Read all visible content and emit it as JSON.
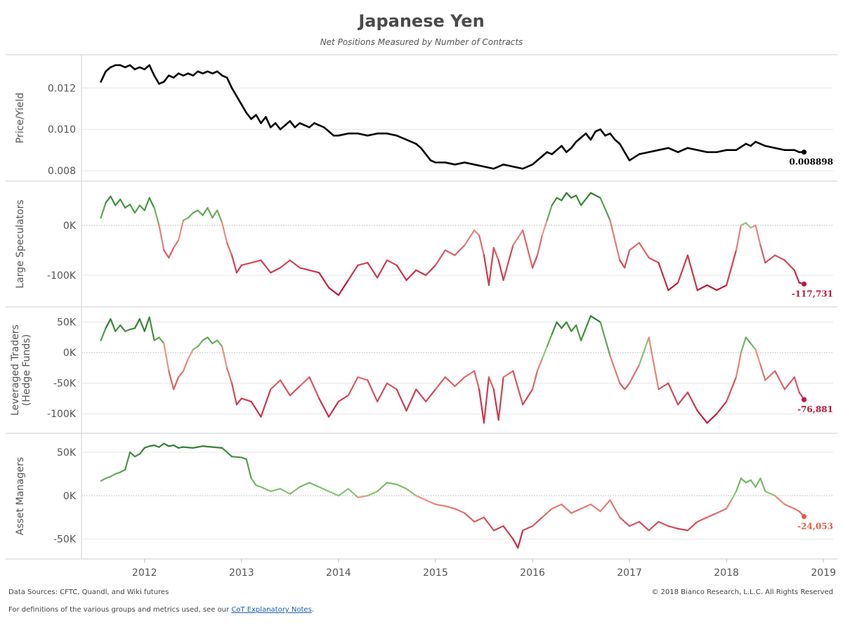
{
  "header": {
    "title": "Japanese Yen",
    "subtitle": "Net Positions Measured by Number of Contracts"
  },
  "footer": {
    "sources": "Data Sources: CFTC, Quandl, and Wiki futures",
    "copyright": "© 2018 Bianco Research, L.L.C. All Rights Reserved",
    "definitions_prefix": "For definitions of the various groups and metrics used, see our ",
    "definitions_link": "CoT Explanatory Notes",
    "definitions_suffix": "."
  },
  "colors": {
    "price_line": "#000000",
    "strong_green": "#2e7d32",
    "light_green": "#8cc878",
    "light_red": "#ef9a86",
    "strong_red": "#c0183a",
    "grid": "#e6e6e6",
    "zero_line": "#b5b5b5"
  },
  "chart_data": {
    "type": "line",
    "x_axis": {
      "ticks": [
        "2012",
        "2013",
        "2014",
        "2015",
        "2016",
        "2017",
        "2018",
        "2019"
      ],
      "range": [
        2011.35,
        2019.1
      ]
    },
    "panels": [
      {
        "id": "price",
        "ylabel": [
          "Price/Yield"
        ],
        "ylim": [
          0.0077,
          0.0134
        ],
        "ticks": [
          0.008,
          0.01,
          0.012
        ],
        "tick_labels": [
          "0.008",
          "0.010",
          "0.012"
        ],
        "zero_line": false,
        "color_mode": "solid",
        "end_label": "0.008898",
        "end_label_color": "#000000",
        "series": {
          "x": [
            2011.55,
            2011.6,
            2011.65,
            2011.7,
            2011.75,
            2011.8,
            2011.85,
            2011.9,
            2011.95,
            2012.0,
            2012.05,
            2012.1,
            2012.15,
            2012.2,
            2012.25,
            2012.3,
            2012.35,
            2012.4,
            2012.45,
            2012.5,
            2012.55,
            2012.6,
            2012.65,
            2012.7,
            2012.75,
            2012.8,
            2012.85,
            2012.9,
            2012.95,
            2013.0,
            2013.05,
            2013.1,
            2013.15,
            2013.2,
            2013.25,
            2013.3,
            2013.35,
            2013.4,
            2013.45,
            2013.5,
            2013.55,
            2013.6,
            2013.65,
            2013.7,
            2013.75,
            2013.8,
            2013.85,
            2013.9,
            2013.95,
            2014.0,
            2014.1,
            2014.2,
            2014.3,
            2014.4,
            2014.5,
            2014.6,
            2014.7,
            2014.8,
            2014.85,
            2014.9,
            2014.95,
            2015.0,
            2015.1,
            2015.2,
            2015.3,
            2015.4,
            2015.5,
            2015.6,
            2015.7,
            2015.8,
            2015.9,
            2016.0,
            2016.05,
            2016.1,
            2016.15,
            2016.2,
            2016.25,
            2016.3,
            2016.35,
            2016.4,
            2016.45,
            2016.5,
            2016.55,
            2016.6,
            2016.65,
            2016.7,
            2016.75,
            2016.8,
            2016.85,
            2016.9,
            2016.95,
            2017.0,
            2017.1,
            2017.2,
            2017.3,
            2017.4,
            2017.5,
            2017.6,
            2017.7,
            2017.8,
            2017.9,
            2018.0,
            2018.1,
            2018.2,
            2018.25,
            2018.3,
            2018.4,
            2018.5,
            2018.6,
            2018.7,
            2018.75,
            2018.8
          ],
          "y": [
            0.0123,
            0.0128,
            0.013,
            0.0131,
            0.0131,
            0.013,
            0.0131,
            0.0129,
            0.013,
            0.0129,
            0.0131,
            0.0126,
            0.0122,
            0.0123,
            0.0126,
            0.0125,
            0.0127,
            0.0126,
            0.0127,
            0.0126,
            0.0128,
            0.0127,
            0.0128,
            0.0127,
            0.0128,
            0.0126,
            0.0125,
            0.012,
            0.0116,
            0.0112,
            0.0108,
            0.0105,
            0.0107,
            0.0103,
            0.0106,
            0.0101,
            0.0103,
            0.01,
            0.0102,
            0.0104,
            0.0101,
            0.0103,
            0.0102,
            0.0101,
            0.0103,
            0.0102,
            0.0101,
            0.0099,
            0.0097,
            0.0097,
            0.0098,
            0.0098,
            0.0097,
            0.0098,
            0.0098,
            0.0097,
            0.0095,
            0.0093,
            0.0091,
            0.0088,
            0.0085,
            0.0084,
            0.0084,
            0.0083,
            0.0084,
            0.0083,
            0.0082,
            0.0081,
            0.0083,
            0.0082,
            0.0081,
            0.0083,
            0.0085,
            0.0087,
            0.0089,
            0.0088,
            0.009,
            0.0092,
            0.0089,
            0.0091,
            0.0094,
            0.0096,
            0.0098,
            0.0095,
            0.0099,
            0.01,
            0.0097,
            0.0098,
            0.0095,
            0.0093,
            0.0089,
            0.0085,
            0.0088,
            0.0089,
            0.009,
            0.0091,
            0.0089,
            0.0091,
            0.009,
            0.0089,
            0.0089,
            0.009,
            0.009,
            0.0093,
            0.0092,
            0.0094,
            0.0092,
            0.0091,
            0.009,
            0.009,
            0.0089,
            0.0089
          ]
        }
      },
      {
        "id": "large-speculators",
        "ylabel": [
          "Large Speculators"
        ],
        "ylim": [
          -155000,
          80000
        ],
        "ticks": [
          0,
          -100000
        ],
        "tick_labels": [
          "0K",
          "-100K"
        ],
        "zero_line": true,
        "color_mode": "sign",
        "color_max": 60000,
        "color_min": -120000,
        "end_label": "-117,731",
        "end_label_color": "#c0183a",
        "series": {
          "x": [
            2011.55,
            2011.6,
            2011.65,
            2011.7,
            2011.75,
            2011.8,
            2011.85,
            2011.9,
            2011.95,
            2012.0,
            2012.05,
            2012.1,
            2012.15,
            2012.2,
            2012.25,
            2012.3,
            2012.35,
            2012.4,
            2012.45,
            2012.5,
            2012.55,
            2012.6,
            2012.65,
            2012.7,
            2012.75,
            2012.8,
            2012.85,
            2012.9,
            2012.95,
            2013.0,
            2013.1,
            2013.2,
            2013.3,
            2013.4,
            2013.5,
            2013.6,
            2013.7,
            2013.8,
            2013.9,
            2014.0,
            2014.1,
            2014.2,
            2014.3,
            2014.4,
            2014.5,
            2014.6,
            2014.7,
            2014.8,
            2014.9,
            2015.0,
            2015.1,
            2015.2,
            2015.3,
            2015.4,
            2015.45,
            2015.5,
            2015.55,
            2015.6,
            2015.65,
            2015.7,
            2015.8,
            2015.9,
            2016.0,
            2016.05,
            2016.1,
            2016.15,
            2016.2,
            2016.25,
            2016.3,
            2016.35,
            2016.4,
            2016.45,
            2016.5,
            2016.6,
            2016.7,
            2016.8,
            2016.9,
            2016.95,
            2017.0,
            2017.1,
            2017.2,
            2017.3,
            2017.4,
            2017.5,
            2017.6,
            2017.7,
            2017.8,
            2017.9,
            2018.0,
            2018.1,
            2018.15,
            2018.2,
            2018.25,
            2018.3,
            2018.35,
            2018.4,
            2018.5,
            2018.6,
            2018.7,
            2018.75,
            2018.8
          ],
          "y": [
            15000,
            45000,
            58000,
            40000,
            52000,
            35000,
            42000,
            25000,
            40000,
            30000,
            55000,
            35000,
            0,
            -50000,
            -65000,
            -45000,
            -30000,
            10000,
            15000,
            25000,
            30000,
            20000,
            35000,
            15000,
            30000,
            5000,
            -35000,
            -60000,
            -95000,
            -80000,
            -75000,
            -70000,
            -95000,
            -85000,
            -70000,
            -85000,
            -90000,
            -95000,
            -125000,
            -140000,
            -110000,
            -80000,
            -75000,
            -105000,
            -70000,
            -80000,
            -110000,
            -90000,
            -100000,
            -80000,
            -50000,
            -60000,
            -40000,
            -10000,
            -20000,
            -60000,
            -120000,
            -45000,
            -70000,
            -110000,
            -40000,
            -10000,
            -85000,
            -60000,
            -20000,
            10000,
            40000,
            55000,
            50000,
            65000,
            55000,
            60000,
            40000,
            65000,
            55000,
            10000,
            -70000,
            -85000,
            -50000,
            -35000,
            -65000,
            -75000,
            -130000,
            -115000,
            -60000,
            -130000,
            -120000,
            -130000,
            -120000,
            -50000,
            0,
            5000,
            -5000,
            0,
            -40000,
            -75000,
            -60000,
            -70000,
            -90000,
            -115000,
            -117731
          ]
        }
      },
      {
        "id": "leveraged-traders",
        "ylabel": [
          "Leveraged Traders",
          "(Hedge Funds)"
        ],
        "ylim": [
          -125000,
          68000
        ],
        "ticks": [
          50000,
          0,
          -50000,
          -100000
        ],
        "tick_labels": [
          "50K",
          "0K",
          "-50K",
          "-100K"
        ],
        "zero_line": true,
        "color_mode": "sign",
        "color_max": 50000,
        "color_min": -110000,
        "end_label": "-76,881",
        "end_label_color": "#c0183a",
        "series": {
          "x": [
            2011.55,
            2011.6,
            2011.65,
            2011.7,
            2011.75,
            2011.8,
            2011.85,
            2011.9,
            2011.95,
            2012.0,
            2012.05,
            2012.1,
            2012.15,
            2012.2,
            2012.25,
            2012.3,
            2012.35,
            2012.4,
            2012.45,
            2012.5,
            2012.55,
            2012.6,
            2012.65,
            2012.7,
            2012.75,
            2012.8,
            2012.85,
            2012.9,
            2012.95,
            2013.0,
            2013.1,
            2013.2,
            2013.3,
            2013.4,
            2013.5,
            2013.6,
            2013.7,
            2013.8,
            2013.9,
            2014.0,
            2014.1,
            2014.2,
            2014.3,
            2014.4,
            2014.5,
            2014.6,
            2014.7,
            2014.8,
            2014.9,
            2015.0,
            2015.1,
            2015.2,
            2015.3,
            2015.4,
            2015.45,
            2015.5,
            2015.55,
            2015.6,
            2015.65,
            2015.7,
            2015.8,
            2015.9,
            2016.0,
            2016.05,
            2016.1,
            2016.15,
            2016.2,
            2016.25,
            2016.3,
            2016.35,
            2016.4,
            2016.45,
            2016.5,
            2016.6,
            2016.7,
            2016.8,
            2016.9,
            2016.95,
            2017.0,
            2017.1,
            2017.2,
            2017.3,
            2017.4,
            2017.5,
            2017.6,
            2017.7,
            2017.8,
            2017.9,
            2018.0,
            2018.1,
            2018.15,
            2018.2,
            2018.25,
            2018.3,
            2018.35,
            2018.4,
            2018.5,
            2018.6,
            2018.7,
            2018.75,
            2018.8
          ],
          "y": [
            20000,
            40000,
            55000,
            35000,
            45000,
            35000,
            38000,
            40000,
            55000,
            35000,
            58000,
            20000,
            25000,
            15000,
            -30000,
            -60000,
            -40000,
            -30000,
            -10000,
            5000,
            10000,
            20000,
            25000,
            15000,
            20000,
            10000,
            -25000,
            -50000,
            -85000,
            -75000,
            -80000,
            -105000,
            -60000,
            -45000,
            -70000,
            -55000,
            -40000,
            -75000,
            -105000,
            -80000,
            -70000,
            -40000,
            -45000,
            -80000,
            -50000,
            -60000,
            -95000,
            -60000,
            -80000,
            -60000,
            -40000,
            -55000,
            -40000,
            -30000,
            -60000,
            -115000,
            -40000,
            -60000,
            -110000,
            -40000,
            -30000,
            -85000,
            -60000,
            -30000,
            -10000,
            10000,
            30000,
            50000,
            40000,
            50000,
            35000,
            45000,
            20000,
            60000,
            50000,
            -5000,
            -50000,
            -60000,
            -50000,
            -20000,
            25000,
            -60000,
            -50000,
            -85000,
            -65000,
            -95000,
            -115000,
            -100000,
            -80000,
            -40000,
            0,
            25000,
            15000,
            5000,
            -20000,
            -45000,
            -30000,
            -60000,
            -40000,
            -65000,
            -76881
          ]
        }
      },
      {
        "id": "asset-managers",
        "ylabel": [
          "Asset Managers"
        ],
        "ylim": [
          -68000,
          67000
        ],
        "ticks": [
          50000,
          0,
          -50000
        ],
        "tick_labels": [
          "50K",
          "0K",
          "-50K"
        ],
        "zero_line": true,
        "color_mode": "sign",
        "color_max": 60000,
        "color_min": -60000,
        "end_label": "-24,053",
        "end_label_color": "#e25c4a",
        "series": {
          "x": [
            2011.55,
            2011.6,
            2011.65,
            2011.7,
            2011.75,
            2011.8,
            2011.85,
            2011.9,
            2011.95,
            2012.0,
            2012.05,
            2012.1,
            2012.15,
            2012.2,
            2012.25,
            2012.3,
            2012.35,
            2012.4,
            2012.5,
            2012.6,
            2012.7,
            2012.8,
            2012.9,
            2013.0,
            2013.05,
            2013.1,
            2013.15,
            2013.2,
            2013.3,
            2013.4,
            2013.5,
            2013.6,
            2013.7,
            2013.8,
            2013.9,
            2014.0,
            2014.1,
            2014.2,
            2014.3,
            2014.4,
            2014.5,
            2014.6,
            2014.7,
            2014.8,
            2014.9,
            2015.0,
            2015.1,
            2015.2,
            2015.3,
            2015.4,
            2015.5,
            2015.6,
            2015.7,
            2015.8,
            2015.85,
            2015.9,
            2016.0,
            2016.1,
            2016.2,
            2016.3,
            2016.4,
            2016.5,
            2016.6,
            2016.7,
            2016.8,
            2016.9,
            2017.0,
            2017.1,
            2017.2,
            2017.3,
            2017.4,
            2017.5,
            2017.6,
            2017.7,
            2017.8,
            2017.9,
            2018.0,
            2018.05,
            2018.1,
            2018.15,
            2018.2,
            2018.25,
            2018.3,
            2018.35,
            2018.4,
            2018.5,
            2018.6,
            2018.7,
            2018.75,
            2018.8
          ],
          "y": [
            17000,
            20000,
            22000,
            25000,
            27000,
            30000,
            50000,
            45000,
            48000,
            55000,
            57000,
            58000,
            56000,
            60000,
            57000,
            58000,
            55000,
            56000,
            55000,
            57000,
            56000,
            55000,
            45000,
            44000,
            42000,
            20000,
            12000,
            10000,
            5000,
            8000,
            2000,
            10000,
            15000,
            10000,
            5000,
            0,
            8000,
            -2000,
            0,
            5000,
            15000,
            13000,
            8000,
            0,
            -5000,
            -10000,
            -12000,
            -15000,
            -20000,
            -30000,
            -25000,
            -40000,
            -35000,
            -50000,
            -60000,
            -40000,
            -35000,
            -25000,
            -15000,
            -10000,
            -20000,
            -15000,
            -10000,
            -18000,
            -5000,
            -25000,
            -35000,
            -30000,
            -40000,
            -30000,
            -35000,
            -38000,
            -40000,
            -30000,
            -25000,
            -20000,
            -15000,
            -5000,
            5000,
            20000,
            15000,
            18000,
            10000,
            20000,
            5000,
            0,
            -10000,
            -15000,
            -18000,
            -24053
          ]
        }
      }
    ]
  }
}
